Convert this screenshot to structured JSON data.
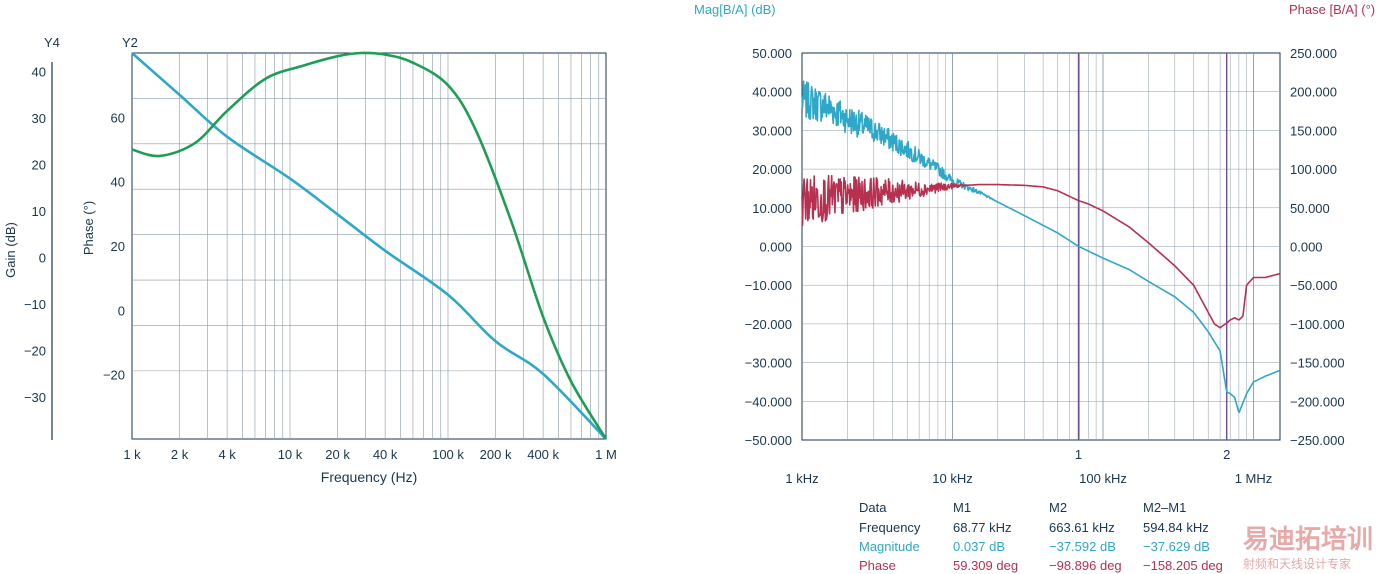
{
  "colors": {
    "blue": "#2fa7c8",
    "green": "#1e9e55",
    "red": "#b8304f",
    "axis": "#1a3550",
    "grid": "#8a9aa8",
    "marker": "#6a4f95"
  },
  "chart_data": [
    {
      "type": "line",
      "title": "",
      "xlabel": "Frequency (Hz)",
      "xscale": "log",
      "xlim": [
        1000,
        1000000
      ],
      "x_ticks": [
        1000,
        2000,
        4000,
        10000,
        20000,
        40000,
        100000,
        200000,
        400000,
        1000000
      ],
      "x_tick_labels": [
        "1 k",
        "2 k",
        "4 k",
        "10 k",
        "20 k",
        "40 k",
        "100 k",
        "200 k",
        "400 k",
        "1 M"
      ],
      "y4": {
        "name": "Y4",
        "label": "Gain (dB)",
        "ylim": [
          -39,
          44
        ],
        "ticks": [
          40,
          30,
          20,
          10,
          0,
          -10,
          -20,
          -30
        ],
        "tick_labels": [
          "40",
          "30",
          "20",
          "10",
          "0",
          "−10",
          "−20",
          "−30"
        ]
      },
      "y2": {
        "name": "Y2",
        "label": "Phase (°)",
        "ylim": [
          -40,
          80
        ],
        "ticks": [
          60,
          40,
          20,
          0,
          -20
        ],
        "tick_labels": [
          "60",
          "40",
          "20",
          "0",
          "−20"
        ]
      },
      "series": [
        {
          "name": "Gain",
          "axis": "y4",
          "color": "blue",
          "x": [
            1000,
            2000,
            4000,
            10000,
            20000,
            40000,
            100000,
            200000,
            400000,
            1000000
          ],
          "y": [
            44,
            35,
            26,
            17,
            9.3,
            1.5,
            -8,
            -18,
            -25,
            -39
          ]
        },
        {
          "name": "Phase",
          "axis": "y2",
          "color": "green",
          "x": [
            1000,
            1500,
            2500,
            4000,
            7000,
            12000,
            20000,
            28000,
            40000,
            60000,
            100000,
            150000,
            250000,
            400000,
            600000,
            1000000
          ],
          "y": [
            50,
            48,
            52,
            62,
            72,
            76,
            79,
            80,
            79.5,
            77,
            70,
            56,
            28,
            -2,
            -22,
            -40
          ]
        }
      ]
    },
    {
      "type": "line",
      "title": "",
      "xlabel": "",
      "xscale": "log",
      "xlim": [
        1000,
        1500000
      ],
      "x_ticks": [
        1000,
        10000,
        100000,
        1000000
      ],
      "x_tick_labels": [
        "1 kHz",
        "10 kHz",
        "100 kHz",
        "1 MHz"
      ],
      "left_axis": {
        "label": "Mag[B/A] (dB)",
        "ylim": [
          -50,
          50
        ],
        "ticks": [
          50,
          40,
          30,
          20,
          10,
          0,
          -10,
          -20,
          -30,
          -40,
          -50
        ],
        "tick_labels": [
          "50.000",
          "40.000",
          "30.000",
          "20.000",
          "10.000",
          "0.000",
          "−10.000",
          "−20.000",
          "−30.000",
          "−40.000",
          "−50.000"
        ]
      },
      "right_axis": {
        "label": "Phase [B/A] (°)",
        "ylim": [
          -250,
          250
        ],
        "ticks": [
          250,
          200,
          150,
          100,
          50,
          0,
          -50,
          -100,
          -150,
          -200,
          -250
        ],
        "tick_labels": [
          "250.000",
          "200.000",
          "150.000",
          "100.000",
          "50.000",
          "0.000",
          "−50.000",
          "−100.000",
          "−150.000",
          "−200.000",
          "−250.000"
        ]
      },
      "markers": [
        {
          "label": "1",
          "x": 68770
        },
        {
          "label": "2",
          "x": 663610
        }
      ],
      "series": [
        {
          "name": "Magnitude",
          "axis": "left",
          "color": "blue",
          "x": [
            1000,
            1500,
            2000,
            3000,
            5000,
            8000,
            10000,
            15000,
            20000,
            30000,
            50000,
            68770,
            100000,
            150000,
            200000,
            300000,
            400000,
            500000,
            600000,
            663610,
            700000,
            750000,
            800000,
            900000,
            1000000,
            1200000,
            1500000
          ],
          "y": [
            38,
            36,
            33,
            30,
            25,
            20,
            17,
            14,
            11.5,
            8,
            3.5,
            0.037,
            -3,
            -6,
            -9,
            -13,
            -17,
            -22,
            -27,
            -37.6,
            -38,
            -39,
            -43,
            -38,
            -35,
            -33.5,
            -32
          ]
        },
        {
          "name": "Phase",
          "axis": "right",
          "color": "red",
          "x": [
            1000,
            2000,
            3000,
            5000,
            10000,
            15000,
            20000,
            30000,
            40000,
            50000,
            68770,
            80000,
            100000,
            150000,
            200000,
            300000,
            400000,
            500000,
            550000,
            600000,
            650000,
            663610,
            700000,
            750000,
            800000,
            850000,
            900000,
            1000000,
            1200000,
            1500000
          ],
          "y": [
            60,
            65,
            70,
            72,
            78,
            80,
            80,
            79,
            77,
            72,
            59.3,
            55,
            46,
            25,
            5,
            -25,
            -50,
            -85,
            -100,
            -105,
            -100,
            -98.9,
            -95,
            -92,
            -95,
            -90,
            -50,
            -40,
            -40,
            -35
          ]
        }
      ]
    }
  ],
  "marker_table": {
    "headers": [
      "Data",
      "M1",
      "M2",
      "M2–M1"
    ],
    "rows": [
      {
        "name": "Frequency",
        "m1": "68.77 kHz",
        "m2": "663.61 kHz",
        "diff": "594.84 kHz",
        "color": "axis"
      },
      {
        "name": "Magnitude",
        "m1": "0.037 dB",
        "m2": "−37.592 dB",
        "diff": "−37.629 dB",
        "color": "blue"
      },
      {
        "name": "Phase",
        "m1": "59.309 deg",
        "m2": "−98.896 deg",
        "diff": "−158.205 deg",
        "color": "red"
      }
    ]
  },
  "watermark": {
    "title": "易迪拓培训",
    "subtitle": "射频和天线设计专家"
  }
}
